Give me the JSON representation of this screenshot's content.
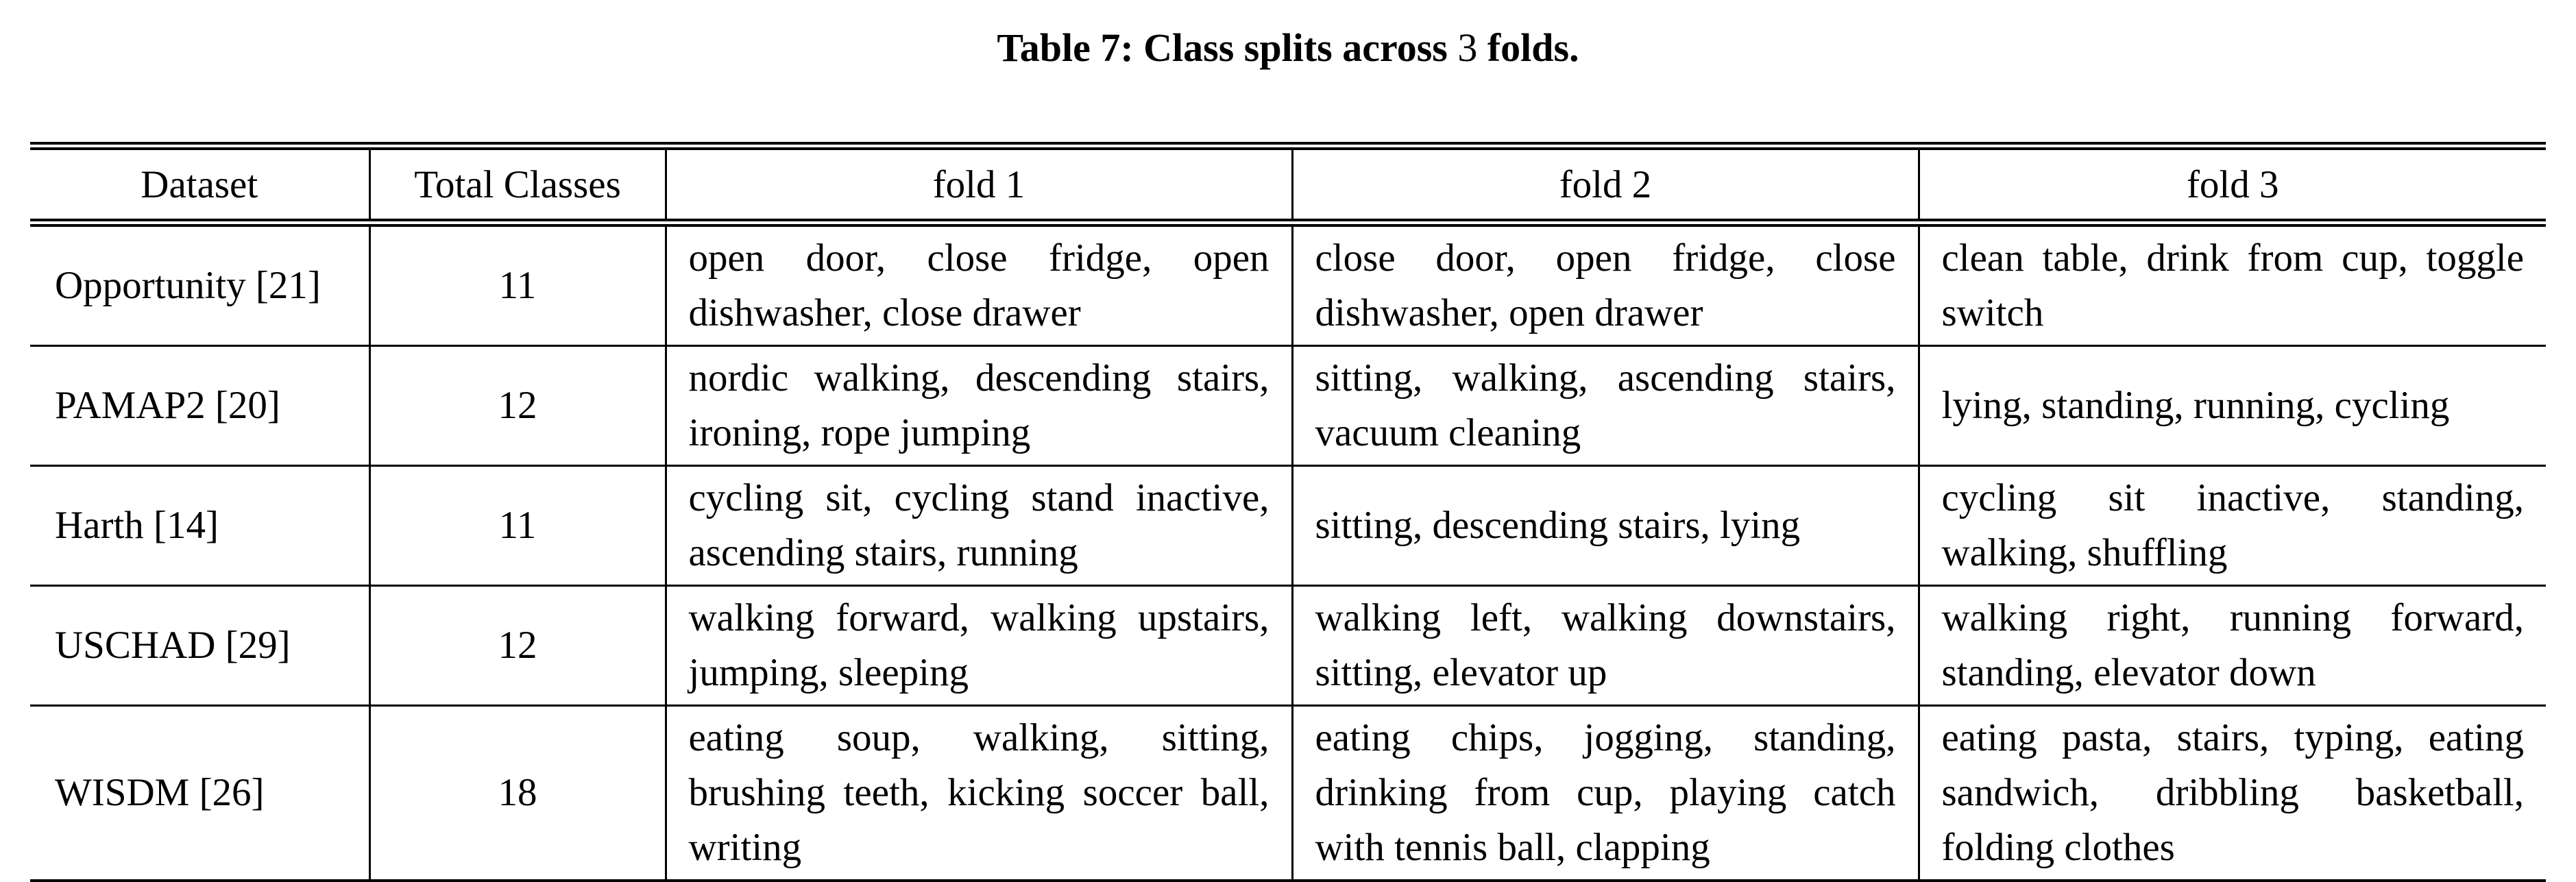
{
  "caption": {
    "prefix": "Table 7: Class splits across",
    "number": "3",
    "suffix": "folds."
  },
  "table": {
    "headers": [
      "Dataset",
      "Total Classes",
      "fold 1",
      "fold 2",
      "fold 3"
    ],
    "rows": [
      {
        "dataset": "Opportunity [21]",
        "total": "11",
        "fold1": "open door, close fridge, open dishwasher, close drawer",
        "fold2": "close door, open fridge, close dishwasher, open drawer",
        "fold3": "clean table, drink from cup, toggle switch"
      },
      {
        "dataset": "PAMAP2 [20]",
        "total": "12",
        "fold1": "nordic walking, descending stairs, ironing, rope jumping",
        "fold2": "sitting, walking, ascending stairs, vacuum cleaning",
        "fold3": "lying, standing, running, cycling"
      },
      {
        "dataset": "Harth [14]",
        "total": "11",
        "fold1": "cycling sit, cycling stand inactive, ascending stairs, running",
        "fold2": "sitting, descending stairs, lying",
        "fold3": "cycling sit inactive, standing, walking, shuffling"
      },
      {
        "dataset": "USCHAD [29]",
        "total": "12",
        "fold1": "walking forward, walking upstairs, jumping, sleeping",
        "fold2": "walking left, walking downstairs, sitting, elevator up",
        "fold3": "walking right, running forward, standing, elevator down"
      },
      {
        "dataset": "WISDM [26]",
        "total": "18",
        "fold1": "eating soup, walking, sitting, brushing teeth, kicking soccer ball, writing",
        "fold2": "eating chips, jogging, standing, drinking from cup, playing catch with tennis ball, clapping",
        "fold3": "eating pasta, stairs, typing, eating sandwich, dribbling basketball, folding clothes"
      }
    ]
  }
}
